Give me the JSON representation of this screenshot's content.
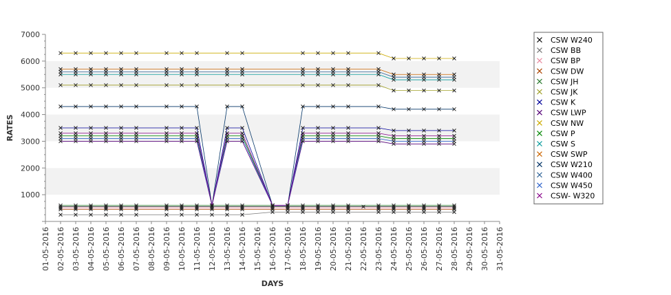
{
  "chart_data": {
    "type": "line",
    "title": "",
    "xlabel": "DAYS",
    "ylabel": "RATES",
    "ylim": [
      0,
      7000
    ],
    "yticks": [
      1000,
      2000,
      3000,
      4000,
      5000,
      6000,
      7000
    ],
    "grid": "alternating horizontal bands",
    "legend_position": "right",
    "categories": [
      "01-05-2016",
      "02-05-2016",
      "03-05-2016",
      "04-05-2016",
      "05-05-2016",
      "06-05-2016",
      "07-05-2016",
      "08-05-2016",
      "09-05-2016",
      "10-05-2016",
      "11-05-2016",
      "12-05-2016",
      "13-05-2016",
      "14-05-2016",
      "15-05-2016",
      "16-05-2016",
      "17-05-2016",
      "18-05-2016",
      "19-05-2016",
      "20-05-2016",
      "21-05-2016",
      "22-05-2016",
      "23-05-2016",
      "24-05-2016",
      "25-05-2016",
      "26-05-2016",
      "27-05-2016",
      "28-05-2016",
      "29-05-2016",
      "30-05-2016",
      "31-05-2016"
    ],
    "series": [
      {
        "name": "CSW  W240",
        "color": "#000000",
        "values": [
          null,
          550,
          550,
          550,
          550,
          550,
          550,
          null,
          550,
          550,
          550,
          550,
          550,
          550,
          null,
          550,
          550,
          550,
          550,
          550,
          550,
          550,
          550,
          550,
          550,
          550,
          550,
          550,
          null,
          null,
          null
        ]
      },
      {
        "name": "CSW BB",
        "color": "#777777",
        "values": [
          null,
          250,
          250,
          250,
          250,
          250,
          250,
          null,
          250,
          250,
          250,
          250,
          250,
          250,
          null,
          350,
          350,
          350,
          350,
          350,
          350,
          null,
          350,
          350,
          350,
          350,
          350,
          350,
          null,
          null,
          null
        ]
      },
      {
        "name": "CSW BP",
        "color": "#e88aa0",
        "values": [
          null,
          500,
          500,
          500,
          500,
          500,
          500,
          null,
          500,
          500,
          500,
          500,
          500,
          500,
          null,
          500,
          500,
          500,
          500,
          500,
          500,
          null,
          500,
          500,
          500,
          500,
          500,
          500,
          null,
          null,
          null
        ]
      },
      {
        "name": "CSW DW",
        "color": "#aa4400",
        "values": [
          null,
          450,
          450,
          450,
          450,
          450,
          450,
          null,
          450,
          450,
          450,
          450,
          450,
          450,
          null,
          450,
          450,
          450,
          450,
          450,
          450,
          null,
          450,
          450,
          450,
          450,
          450,
          450,
          null,
          null,
          null
        ]
      },
      {
        "name": "CSW JH",
        "color": "#2e7d32",
        "values": [
          null,
          600,
          600,
          600,
          600,
          600,
          600,
          null,
          600,
          600,
          600,
          600,
          600,
          600,
          null,
          600,
          600,
          600,
          600,
          600,
          600,
          null,
          600,
          600,
          600,
          600,
          600,
          600,
          null,
          null,
          null
        ]
      },
      {
        "name": "CSW JK",
        "color": "#9e9d24",
        "values": [
          null,
          5100,
          5100,
          5100,
          5100,
          5100,
          5100,
          null,
          5100,
          5100,
          5100,
          null,
          5100,
          5100,
          null,
          null,
          null,
          5100,
          5100,
          5100,
          5100,
          null,
          5100,
          4900,
          4900,
          4900,
          4900,
          4900,
          null,
          null,
          null
        ]
      },
      {
        "name": "CSW K",
        "color": "#000099",
        "values": [
          null,
          3500,
          3500,
          3500,
          3500,
          3500,
          3500,
          null,
          3500,
          3500,
          3500,
          600,
          3500,
          3500,
          null,
          600,
          600,
          3500,
          3500,
          3500,
          3500,
          null,
          3500,
          3400,
          3400,
          3400,
          3400,
          3400,
          null,
          null,
          null
        ]
      },
      {
        "name": "CSW LWP",
        "color": "#550077",
        "values": [
          null,
          3000,
          3000,
          3000,
          3000,
          3000,
          3000,
          null,
          3000,
          3000,
          3000,
          600,
          3000,
          3000,
          null,
          600,
          600,
          3000,
          3000,
          3000,
          3000,
          null,
          3000,
          2900,
          2900,
          2900,
          2900,
          2900,
          null,
          null,
          null
        ]
      },
      {
        "name": "CSW NW",
        "color": "#ccaa00",
        "values": [
          null,
          6300,
          6300,
          6300,
          6300,
          6300,
          6300,
          null,
          6300,
          6300,
          6300,
          null,
          6300,
          6300,
          null,
          null,
          null,
          6300,
          6300,
          6300,
          6300,
          null,
          6300,
          6100,
          6100,
          6100,
          6100,
          6100,
          null,
          null,
          null
        ]
      },
      {
        "name": "CSW P",
        "color": "#008800",
        "values": [
          null,
          3200,
          3200,
          3200,
          3200,
          3200,
          3200,
          null,
          3200,
          3200,
          3200,
          600,
          3200,
          3200,
          null,
          600,
          600,
          3200,
          3200,
          3200,
          3200,
          null,
          3200,
          3100,
          3100,
          3100,
          3100,
          3100,
          null,
          null,
          null
        ]
      },
      {
        "name": "CSW S",
        "color": "#009999",
        "values": [
          null,
          5500,
          5500,
          5500,
          5500,
          5500,
          5500,
          null,
          5500,
          5500,
          5500,
          null,
          5500,
          5500,
          null,
          null,
          null,
          5500,
          5500,
          5500,
          5500,
          null,
          5500,
          5300,
          5300,
          5300,
          5300,
          5300,
          null,
          null,
          null
        ]
      },
      {
        "name": "CSW SWP",
        "color": "#cc6600",
        "values": [
          null,
          5700,
          5700,
          5700,
          5700,
          5700,
          5700,
          null,
          5700,
          5700,
          5700,
          null,
          5700,
          5700,
          null,
          null,
          null,
          5700,
          5700,
          5700,
          5700,
          null,
          5700,
          5500,
          5500,
          5500,
          5500,
          5500,
          null,
          null,
          null
        ]
      },
      {
        "name": "CSW W210",
        "color": "#003366",
        "values": [
          null,
          4300,
          4300,
          4300,
          4300,
          4300,
          4300,
          null,
          4300,
          4300,
          4300,
          600,
          4300,
          4300,
          null,
          600,
          600,
          4300,
          4300,
          4300,
          4300,
          null,
          4300,
          4200,
          4200,
          4200,
          4200,
          4200,
          null,
          null,
          null
        ]
      },
      {
        "name": "CSW W400",
        "color": "#336699",
        "values": [
          null,
          5600,
          5600,
          5600,
          5600,
          5600,
          5600,
          null,
          5600,
          5600,
          5600,
          null,
          5600,
          5600,
          null,
          null,
          null,
          5600,
          5600,
          5600,
          5600,
          null,
          5600,
          5400,
          5400,
          5400,
          5400,
          5400,
          null,
          null,
          null
        ]
      },
      {
        "name": "CSW W450",
        "color": "#3366cc",
        "values": [
          null,
          3100,
          3100,
          3100,
          3100,
          3100,
          3100,
          null,
          3100,
          3100,
          3100,
          600,
          3100,
          3100,
          null,
          600,
          600,
          3100,
          3100,
          3100,
          3100,
          null,
          3100,
          3000,
          3000,
          3000,
          3000,
          3000,
          null,
          null,
          null
        ]
      },
      {
        "name": "CSW- W320",
        "color": "#880088",
        "values": [
          null,
          3300,
          3300,
          3300,
          3300,
          3300,
          3300,
          null,
          3300,
          3300,
          3300,
          600,
          3300,
          3300,
          null,
          600,
          600,
          3300,
          3300,
          3300,
          3300,
          null,
          3300,
          3200,
          3200,
          3200,
          3200,
          3200,
          null,
          null,
          null
        ]
      }
    ]
  }
}
